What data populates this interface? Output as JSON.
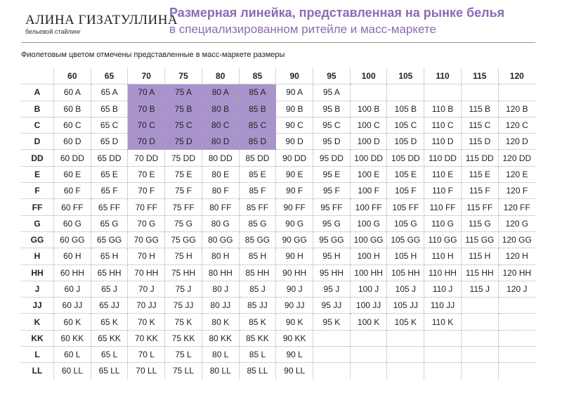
{
  "header": {
    "brand": "АЛИНА ГИЗАТУЛЛИНА",
    "brand_subtitle": "бельевой стайлинг",
    "title": "Размерная линейка, представленная на рынке белья",
    "subtitle": "в специализированном ритейле и масс-маркете"
  },
  "note": "Фиолетовым цветом отмечены представленные в масс-маркете размеры",
  "table": {
    "columns": [
      60,
      65,
      70,
      75,
      80,
      85,
      90,
      95,
      100,
      105,
      110,
      115,
      120
    ],
    "rows": [
      {
        "label": "A",
        "cells": [
          "60 A",
          "65 A",
          "70 A",
          "75 A",
          "80 A",
          "85 A",
          "90 A",
          "95 A",
          null,
          null,
          null,
          null,
          null
        ]
      },
      {
        "label": "B",
        "cells": [
          "60 B",
          "65 B",
          "70 B",
          "75 B",
          "80 B",
          "85 B",
          "90 B",
          "95 B",
          "100 B",
          "105 B",
          "110 B",
          "115 B",
          "120 B"
        ]
      },
      {
        "label": "C",
        "cells": [
          "60 C",
          "65 C",
          "70 C",
          "75 C",
          "80 C",
          "85 C",
          "90 C",
          "95 C",
          "100 C",
          "105 C",
          "110 C",
          "115 C",
          "120 C"
        ]
      },
      {
        "label": "D",
        "cells": [
          "60 D",
          "65 D",
          "70 D",
          "75 D",
          "80 D",
          "85 D",
          "90 D",
          "95 D",
          "100 D",
          "105 D",
          "110 D",
          "115 D",
          "120 D"
        ]
      },
      {
        "label": "DD",
        "cells": [
          "60 DD",
          "65 DD",
          "70 DD",
          "75 DD",
          "80 DD",
          "85 DD",
          "90 DD",
          "95 DD",
          "100 DD",
          "105 DD",
          "110 DD",
          "115 DD",
          "120 DD"
        ]
      },
      {
        "label": "E",
        "cells": [
          "60 E",
          "65 E",
          "70 E",
          "75 E",
          "80 E",
          "85 E",
          "90 E",
          "95 E",
          "100 E",
          "105 E",
          "110 E",
          "115 E",
          "120 E"
        ]
      },
      {
        "label": "F",
        "cells": [
          "60 F",
          "65 F",
          "70 F",
          "75 F",
          "80 F",
          "85 F",
          "90 F",
          "95 F",
          "100 F",
          "105 F",
          "110 F",
          "115 F",
          "120 F"
        ]
      },
      {
        "label": "FF",
        "cells": [
          "60 FF",
          "65 FF",
          "70 FF",
          "75 FF",
          "80 FF",
          "85 FF",
          "90 FF",
          "95 FF",
          "100 FF",
          "105 FF",
          "110 FF",
          "115 FF",
          "120 FF"
        ]
      },
      {
        "label": "G",
        "cells": [
          "60 G",
          "65 G",
          "70 G",
          "75 G",
          "80 G",
          "85 G",
          "90 G",
          "95 G",
          "100 G",
          "105 G",
          "110 G",
          "115 G",
          "120 G"
        ]
      },
      {
        "label": "GG",
        "cells": [
          "60 GG",
          "65 GG",
          "70 GG",
          "75 GG",
          "80 GG",
          "85 GG",
          "90 GG",
          "95 GG",
          "100 GG",
          "105 GG",
          "110 GG",
          "115 GG",
          "120 GG"
        ]
      },
      {
        "label": "H",
        "cells": [
          "60 H",
          "65 H",
          "70 H",
          "75 H",
          "80 H",
          "85 H",
          "90 H",
          "95 H",
          "100 H",
          "105 H",
          "110 H",
          "115 H",
          "120 H"
        ]
      },
      {
        "label": "HH",
        "cells": [
          "60 HH",
          "65 HH",
          "70 HH",
          "75 HH",
          "80 HH",
          "85 HH",
          "90 HH",
          "95 HH",
          "100 HH",
          "105 HH",
          "110 HH",
          "115 HH",
          "120 HH"
        ]
      },
      {
        "label": "J",
        "cells": [
          "60 J",
          "65 J",
          "70 J",
          "75 J",
          "80 J",
          "85 J",
          "90 J",
          "95 J",
          "100 J",
          "105 J",
          "110 J",
          "115 J",
          "120 J"
        ]
      },
      {
        "label": "JJ",
        "cells": [
          "60 JJ",
          "65 JJ",
          "70 JJ",
          "75 JJ",
          "80 JJ",
          "85 JJ",
          "90 JJ",
          "95 JJ",
          "100 JJ",
          "105 JJ",
          "110 JJ",
          null,
          null
        ]
      },
      {
        "label": "K",
        "cells": [
          "60 K",
          "65 K",
          "70 K",
          "75 K",
          "80 K",
          "85 K",
          "90 K",
          "95 K",
          "100 K",
          "105 K",
          "110 K",
          null,
          null
        ]
      },
      {
        "label": "KK",
        "cells": [
          "60 KK",
          "65 KK",
          "70 KK",
          "75 KK",
          "80 KK",
          "85 KK",
          "90 KK",
          null,
          null,
          null,
          null,
          null,
          null
        ]
      },
      {
        "label": "L",
        "cells": [
          "60 L",
          "65 L",
          "70 L",
          "75 L",
          "80 L",
          "85 L",
          "90 L",
          null,
          null,
          null,
          null,
          null,
          null
        ]
      },
      {
        "label": "LL",
        "cells": [
          "60 LL",
          "65 LL",
          "70 LL",
          "75 LL",
          "80 LL",
          "85 LL",
          "90 LL",
          null,
          null,
          null,
          null,
          null,
          null
        ]
      }
    ]
  }
}
